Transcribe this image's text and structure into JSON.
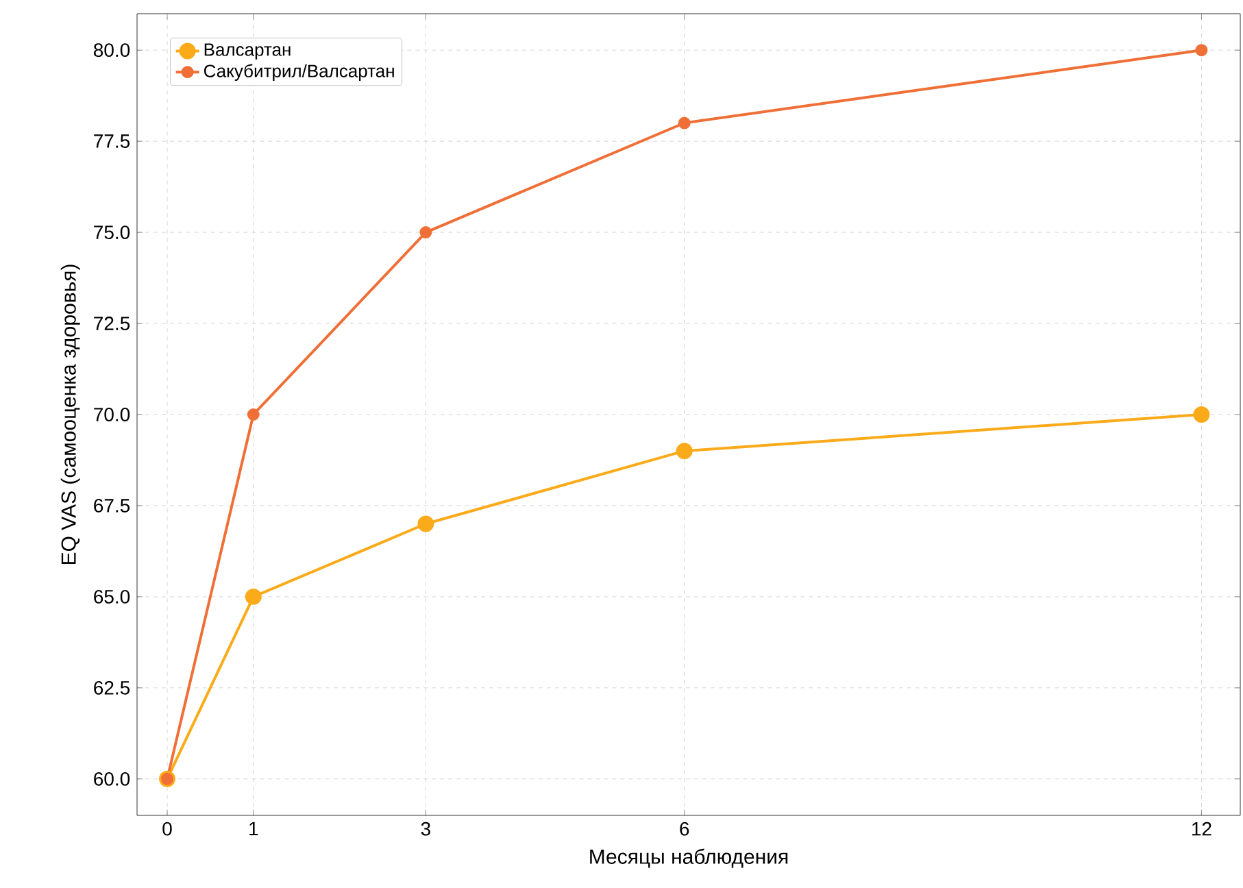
{
  "chart_data": {
    "type": "line",
    "xlabel": "Месяцы наблюдения",
    "ylabel": "EQ VAS (самооценка здоровья)",
    "x": [
      0,
      1,
      3,
      6,
      12
    ],
    "series": [
      {
        "name": "Валсартан",
        "color": "#fbaa19",
        "values": [
          60,
          65,
          67,
          69,
          70
        ]
      },
      {
        "name": "Сакубитрил/Валсартан",
        "color": "#ef6f37",
        "values": [
          60,
          70,
          75,
          78,
          80
        ]
      }
    ],
    "xlim": [
      -0.35,
      12.45
    ],
    "ylim": [
      59,
      81
    ],
    "xticks": [
      0,
      1,
      3,
      6,
      12
    ],
    "yticks": [
      {
        "value": 60,
        "label": "60.0"
      },
      {
        "value": 62.5,
        "label": "62.5"
      },
      {
        "value": 65,
        "label": "65.0"
      },
      {
        "value": 67.5,
        "label": "67.5"
      },
      {
        "value": 70,
        "label": "70.0"
      },
      {
        "value": 72.5,
        "label": "72.5"
      },
      {
        "value": 75,
        "label": "75.0"
      },
      {
        "value": 77.5,
        "label": "77.5"
      },
      {
        "value": 80,
        "label": "80.0"
      }
    ],
    "grid": true,
    "legend": "top left",
    "marker": "circle",
    "line_style": "solid"
  }
}
